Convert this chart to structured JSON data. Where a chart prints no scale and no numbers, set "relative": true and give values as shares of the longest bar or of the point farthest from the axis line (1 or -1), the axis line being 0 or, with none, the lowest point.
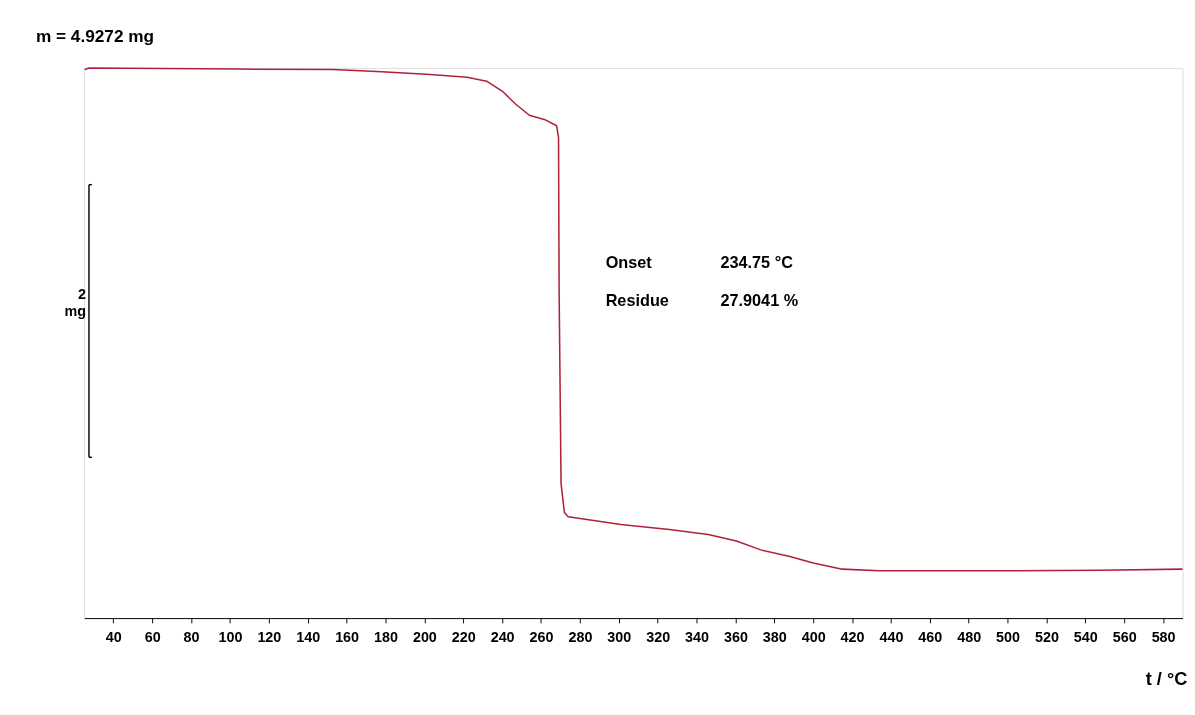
{
  "chart_data": {
    "type": "line",
    "title": "m = 4.9272 mg",
    "xlabel": "t / °C",
    "relative": true,
    "x": [
      25.2,
      27.7,
      104,
      153,
      178,
      203,
      222,
      232,
      240,
      247,
      254,
      262,
      268,
      269,
      269.3,
      270.3,
      272,
      274,
      301,
      326,
      346,
      360.5,
      373,
      388,
      400,
      415,
      434,
      499,
      548,
      590
    ],
    "series": [
      {
        "color": "#b0203a",
        "values": [
          0.997,
          1.0,
          0.998,
          0.997,
          0.993,
          0.988,
          0.983,
          0.976,
          0.958,
          0.934,
          0.914,
          0.906,
          0.895,
          0.874,
          0.594,
          0.245,
          0.192,
          0.184,
          0.17,
          0.161,
          0.152,
          0.14,
          0.124,
          0.112,
          0.1,
          0.089,
          0.086,
          0.086,
          0.087,
          0.089
        ]
      }
    ],
    "xlim": [
      25,
      590
    ],
    "xticks": [
      40,
      60,
      80,
      100,
      120,
      140,
      160,
      180,
      200,
      220,
      240,
      260,
      280,
      300,
      320,
      340,
      360,
      380,
      400,
      420,
      440,
      460,
      480,
      500,
      520,
      540,
      560,
      580
    ],
    "annotations": [
      "Onset 234.75 °C",
      "Residue 27.9041 %",
      "2 mg"
    ],
    "grid": false,
    "marker": "none",
    "line_style": "solid"
  }
}
